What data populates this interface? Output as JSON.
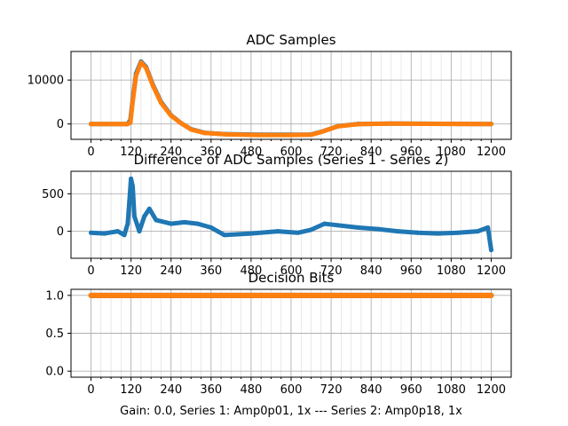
{
  "colors": {
    "series1": "#1f77b4",
    "series2": "#ff7f0e"
  },
  "xlabel": "Gain: 0.0, Series 1: Amp0p01, 1x --- Series 2: Amp0p18, 1x",
  "chart_data": [
    {
      "type": "line",
      "title": "ADC Samples",
      "xlim": [
        -60,
        1260
      ],
      "ylim": [
        -3500,
        16500
      ],
      "xticks": [
        0,
        120,
        240,
        360,
        480,
        600,
        720,
        840,
        960,
        1080,
        1200
      ],
      "yticks": [
        0,
        10000
      ],
      "grid": true,
      "series": [
        {
          "color": "#1f77b4",
          "points": [
            [
              0,
              0
            ],
            [
              110,
              0
            ],
            [
              118,
              900
            ],
            [
              125,
              5500
            ],
            [
              135,
              11500
            ],
            [
              150,
              14200
            ],
            [
              165,
              13000
            ],
            [
              185,
              9000
            ],
            [
              210,
              5000
            ],
            [
              240,
              2000
            ],
            [
              270,
              200
            ],
            [
              300,
              -1200
            ],
            [
              340,
              -2000
            ],
            [
              400,
              -2300
            ],
            [
              500,
              -2450
            ],
            [
              600,
              -2450
            ],
            [
              660,
              -2400
            ],
            [
              690,
              -1800
            ],
            [
              740,
              -500
            ],
            [
              800,
              0
            ],
            [
              900,
              100
            ],
            [
              1000,
              50
            ],
            [
              1100,
              20
            ],
            [
              1200,
              0
            ]
          ]
        },
        {
          "color": "#ff7f0e",
          "points": [
            [
              0,
              0
            ],
            [
              110,
              0
            ],
            [
              118,
              300
            ],
            [
              125,
              5000
            ],
            [
              135,
              11000
            ],
            [
              150,
              14000
            ],
            [
              165,
              12800
            ],
            [
              185,
              8800
            ],
            [
              210,
              4800
            ],
            [
              240,
              1900
            ],
            [
              270,
              150
            ],
            [
              300,
              -1250
            ],
            [
              340,
              -2050
            ],
            [
              400,
              -2350
            ],
            [
              500,
              -2500
            ],
            [
              600,
              -2500
            ],
            [
              660,
              -2450
            ],
            [
              690,
              -1850
            ],
            [
              740,
              -550
            ],
            [
              800,
              -50
            ],
            [
              900,
              80
            ],
            [
              1000,
              30
            ],
            [
              1100,
              10
            ],
            [
              1200,
              -10
            ]
          ]
        }
      ]
    },
    {
      "type": "line",
      "title": "Difference of ADC Samples (Series 1 - Series 2)",
      "xlim": [
        -60,
        1260
      ],
      "ylim": [
        -360,
        800
      ],
      "xticks": [
        0,
        120,
        240,
        360,
        480,
        600,
        720,
        840,
        960,
        1080,
        1200
      ],
      "yticks": [
        0,
        500
      ],
      "grid": true,
      "series": [
        {
          "color": "#1f77b4",
          "points": [
            [
              0,
              -20
            ],
            [
              40,
              -30
            ],
            [
              80,
              0
            ],
            [
              100,
              -50
            ],
            [
              110,
              100
            ],
            [
              115,
              400
            ],
            [
              120,
              700
            ],
            [
              125,
              600
            ],
            [
              130,
              200
            ],
            [
              145,
              0
            ],
            [
              160,
              200
            ],
            [
              175,
              300
            ],
            [
              195,
              150
            ],
            [
              240,
              100
            ],
            [
              280,
              120
            ],
            [
              320,
              100
            ],
            [
              360,
              50
            ],
            [
              400,
              -50
            ],
            [
              480,
              -30
            ],
            [
              560,
              0
            ],
            [
              620,
              -20
            ],
            [
              660,
              20
            ],
            [
              700,
              100
            ],
            [
              740,
              80
            ],
            [
              800,
              50
            ],
            [
              860,
              30
            ],
            [
              920,
              0
            ],
            [
              980,
              -20
            ],
            [
              1040,
              -30
            ],
            [
              1100,
              -20
            ],
            [
              1160,
              0
            ],
            [
              1190,
              50
            ],
            [
              1200,
              -250
            ]
          ]
        }
      ]
    },
    {
      "type": "scatter",
      "title": "Decision Bits",
      "xlim": [
        -60,
        1260
      ],
      "ylim": [
        -0.08,
        1.08
      ],
      "xticks": [
        0,
        120,
        240,
        360,
        480,
        600,
        720,
        840,
        960,
        1080,
        1200
      ],
      "yticks": [
        0.0,
        0.5,
        1.0
      ],
      "grid": true,
      "series": [
        {
          "color": "#1f77b4",
          "points": [
            [
              0,
              1
            ],
            [
              1200,
              1
            ]
          ]
        },
        {
          "color": "#ff7f0e",
          "points": [
            [
              0,
              1
            ],
            [
              1200,
              1
            ]
          ]
        }
      ]
    }
  ]
}
